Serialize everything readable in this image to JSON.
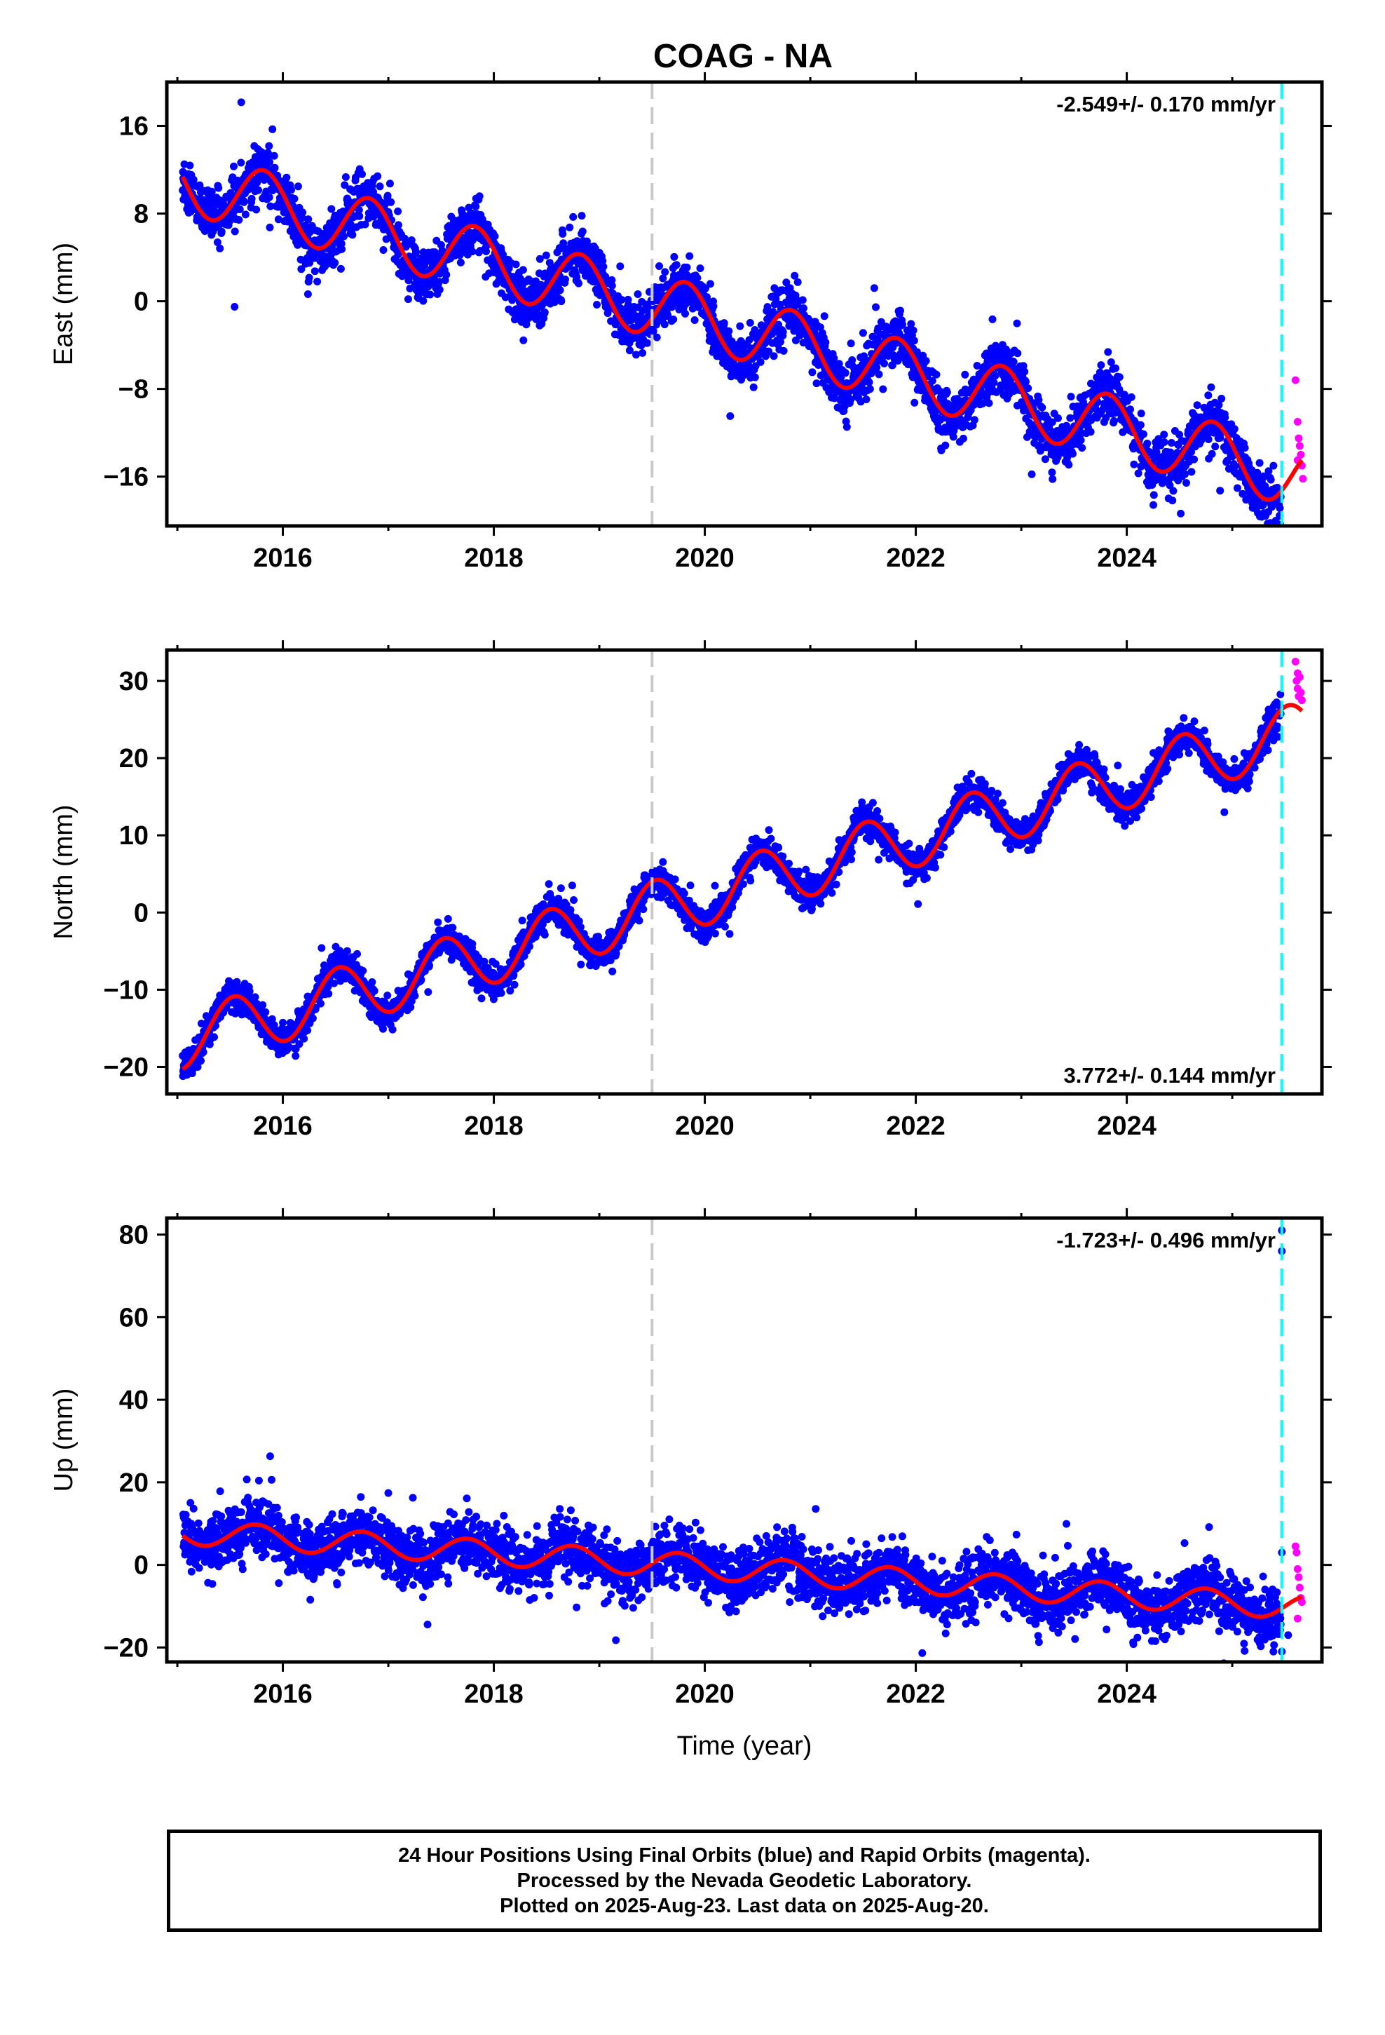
{
  "title": "COAG - NA",
  "colors": {
    "final_orbits": "#0000ff",
    "rapid_orbits": "#ff00ff",
    "model": "#ff0000",
    "reference_line": "#c8c8c8",
    "last_data_line": "#00ffff"
  },
  "chart_data": [
    {
      "type": "scatter",
      "ylabel": "East (mm)",
      "ylim": [
        -20.5,
        20
      ],
      "yticks": [
        16,
        8,
        0,
        -8,
        -16
      ],
      "yticklabels": [
        "16",
        "8",
        "0",
        "−8",
        "−16"
      ],
      "xlim": [
        2014.9,
        2025.85
      ],
      "xticks": [
        2016,
        2018,
        2020,
        2022,
        2024
      ],
      "xticklabels": [
        "2016",
        "2018",
        "2020",
        "2022",
        "2024"
      ],
      "velocity_label": "-2.549+/- 0.170 mm/yr",
      "velocity_label_position": "top-right",
      "reference_line_x": 2019.5,
      "last_data_line_x": 2025.47,
      "series": [
        {
          "name": "Final Orbits",
          "color": "blue",
          "trend": {
            "t0": 2015.05,
            "v0": 11.0,
            "rate": -2.549,
            "amp": 2.9,
            "peak_phase": 0.82
          },
          "noise_sd": 1.2
        },
        {
          "name": "Rapid Orbits",
          "color": "magenta",
          "points": [
            [
              2025.6,
              -7.2
            ],
            [
              2025.62,
              -11.0
            ],
            [
              2025.63,
              -12.5
            ],
            [
              2025.64,
              -13.2
            ],
            [
              2025.65,
              -14.0
            ],
            [
              2025.66,
              -15.0
            ],
            [
              2025.67,
              -16.2
            ],
            [
              2025.62,
              -14.5
            ]
          ]
        },
        {
          "name": "Model",
          "color": "red",
          "line": true
        }
      ]
    },
    {
      "type": "scatter",
      "ylabel": "North (mm)",
      "ylim": [
        -23.5,
        34
      ],
      "yticks": [
        30,
        20,
        10,
        0,
        -10,
        -20
      ],
      "yticklabels": [
        "30",
        "20",
        "10",
        "0",
        "−10",
        "−20"
      ],
      "xlim": [
        2014.9,
        2025.85
      ],
      "xticks": [
        2016,
        2018,
        2020,
        2022,
        2024
      ],
      "xticklabels": [
        "2016",
        "2018",
        "2020",
        "2022",
        "2024"
      ],
      "velocity_label": "3.772+/- 0.144 mm/yr",
      "velocity_label_position": "bottom-right",
      "reference_line_x": 2019.5,
      "last_data_line_x": 2025.47,
      "series": [
        {
          "name": "Final Orbits",
          "color": "blue",
          "trend": {
            "t0": 2015.05,
            "v0": -16.5,
            "rate": 3.772,
            "amp": 3.8,
            "peak_phase": 0.53
          },
          "noise_sd": 1.0
        },
        {
          "name": "Rapid Orbits",
          "color": "magenta",
          "points": [
            [
              2025.6,
              32.5
            ],
            [
              2025.61,
              30.0
            ],
            [
              2025.62,
              29.0
            ],
            [
              2025.63,
              28.0
            ],
            [
              2025.64,
              30.5
            ],
            [
              2025.65,
              28.5
            ],
            [
              2025.66,
              27.5
            ],
            [
              2025.62,
              31.0
            ]
          ]
        },
        {
          "name": "Model",
          "color": "red",
          "line": true
        }
      ]
    },
    {
      "type": "scatter",
      "ylabel": "Up (mm)",
      "ylim": [
        -23.5,
        84
      ],
      "yticks": [
        80,
        60,
        40,
        20,
        0,
        -20
      ],
      "yticklabels": [
        "80",
        "60",
        "40",
        "20",
        "0",
        "−20"
      ],
      "xlim": [
        2014.9,
        2025.85
      ],
      "xticks": [
        2016,
        2018,
        2020,
        2022,
        2024
      ],
      "xticklabels": [
        "2016",
        "2018",
        "2020",
        "2022",
        "2024"
      ],
      "xlabel": "Time (year)",
      "velocity_label": "-1.723+/- 0.496 mm/yr",
      "velocity_label_position": "top-right",
      "reference_line_x": 2019.5,
      "last_data_line_x": 2025.47,
      "series": [
        {
          "name": "Final Orbits",
          "color": "blue",
          "trend": {
            "t0": 2015.05,
            "v0": 8.0,
            "rate": -1.723,
            "amp": 3.0,
            "peak_phase": 0.75
          },
          "noise_sd": 3.4,
          "outliers": [
            [
              2025.47,
              81.0
            ],
            [
              2025.47,
              76.0
            ],
            [
              2025.47,
              3.0
            ],
            [
              2025.47,
              -21.0
            ],
            [
              2025.39,
              -21.0
            ],
            [
              2025.53,
              -17.0
            ]
          ]
        },
        {
          "name": "Rapid Orbits",
          "color": "magenta",
          "points": [
            [
              2025.6,
              4.5
            ],
            [
              2025.61,
              3.0
            ],
            [
              2025.62,
              -1.0
            ],
            [
              2025.63,
              -3.0
            ],
            [
              2025.64,
              -5.5
            ],
            [
              2025.65,
              -8.0
            ],
            [
              2025.66,
              -9.0
            ],
            [
              2025.62,
              -13.0
            ]
          ]
        },
        {
          "name": "Model",
          "color": "red",
          "line": true
        }
      ]
    }
  ],
  "footer": {
    "line1": "24 Hour Positions Using Final Orbits (blue) and Rapid Orbits (magenta).",
    "line2": "Processed by the Nevada Geodetic Laboratory.",
    "line3": "Plotted on 2025-Aug-23. Last data on 2025-Aug-20."
  }
}
